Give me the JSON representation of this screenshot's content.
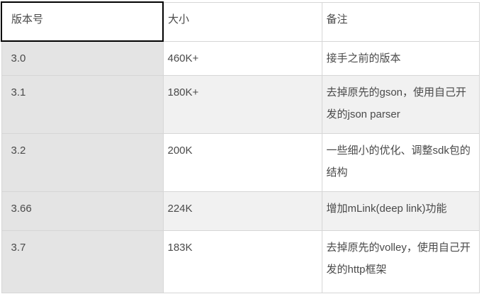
{
  "table": {
    "columns": [
      {
        "label": "版本号"
      },
      {
        "label": "大小"
      },
      {
        "label": "备注"
      }
    ],
    "rows": [
      {
        "version": "3.0",
        "size": "460K+",
        "note": "接手之前的版本"
      },
      {
        "version": "3.1",
        "size": "180K+",
        "note": "去掉原先的gson，使用自己开发的json parser"
      },
      {
        "version": "3.2",
        "size": "200K",
        "note": "一些细小的优化、调整sdk包的结构"
      },
      {
        "version": "3.66",
        "size": "224K",
        "note": "增加mLink(deep link)功能"
      },
      {
        "version": "3.7",
        "size": "183K",
        "note": "去掉原先的volley，使用自己开发的http框架"
      }
    ],
    "selected_cell": "版本号",
    "colors": {
      "version_column_bg": "#e4e4e4",
      "stripe_row_bg": "#f1f1f1",
      "cell_border": "#d6d6d6",
      "selected_cell_border": "#000000",
      "text": "#4a4a4a",
      "background": "#ffffff"
    }
  }
}
